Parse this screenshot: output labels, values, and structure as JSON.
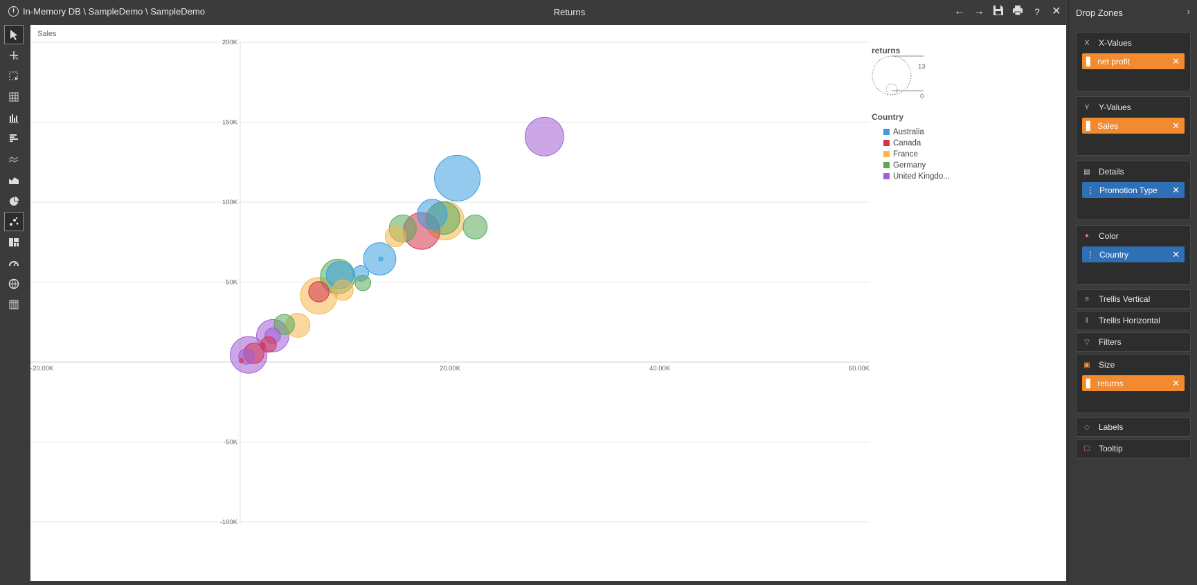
{
  "header": {
    "breadcrumb": "In-Memory DB \\ SampleDemo \\ SampleDemo",
    "title": "Returns"
  },
  "toolbar": {
    "tools": [
      "pointer",
      "crosshair",
      "select",
      "table",
      "column-chart",
      "bar-chart",
      "line-chart",
      "area-chart",
      "pie-chart",
      "scatter-chart",
      "treemap",
      "gauge",
      "map",
      "pivot"
    ],
    "active": "scatter-chart"
  },
  "canvas": {
    "sales_label": "Sales"
  },
  "chart_data": {
    "type": "scatter",
    "xlim": [
      -20000,
      60000
    ],
    "ylim": [
      -100000,
      200000
    ],
    "x_ticks": [
      "-20.00K",
      "20.00K",
      "40.00K",
      "60.00K"
    ],
    "x_tick_values": [
      -20000,
      20000,
      40000,
      60000
    ],
    "y_ticks": [
      "200K",
      "150K",
      "100K",
      "50K",
      "-50K",
      "-100K"
    ],
    "y_tick_values": [
      200000,
      150000,
      100000,
      50000,
      -50000,
      -100000
    ],
    "size_legend": {
      "title": "returns",
      "max": "13",
      "min": "0",
      "max_value": 13
    },
    "color_legend": {
      "title": "Country",
      "items": [
        {
          "name": "Australia",
          "color": "#3a9ee0"
        },
        {
          "name": "Canada",
          "color": "#d6334e"
        },
        {
          "name": "France",
          "color": "#f8b64c"
        },
        {
          "name": "Germany",
          "color": "#5aa95a"
        },
        {
          "name": "United Kingdo...",
          "color": "#a35fd6"
        }
      ]
    },
    "points": [
      {
        "series": "United Kingdo...",
        "x": 29000,
        "y": 141000,
        "size": 9
      },
      {
        "series": "Australia",
        "x": 20700,
        "y": 115000,
        "size": 13
      },
      {
        "series": "Australia",
        "x": 18300,
        "y": 92500,
        "size": 5
      },
      {
        "series": "France",
        "x": 19500,
        "y": 88500,
        "size": 9
      },
      {
        "series": "Germany",
        "x": 19400,
        "y": 90000,
        "size": 6
      },
      {
        "series": "Canada",
        "x": 17300,
        "y": 82000,
        "size": 8
      },
      {
        "series": "Germany",
        "x": 22400,
        "y": 84500,
        "size": 3
      },
      {
        "series": "Germany",
        "x": 15500,
        "y": 83500,
        "size": 4
      },
      {
        "series": "France",
        "x": 14800,
        "y": 78500,
        "size": 2
      },
      {
        "series": "Australia",
        "x": 13300,
        "y": 64500,
        "size": 6
      },
      {
        "series": "Australia",
        "x": 13400,
        "y": 64500,
        "size": 0
      },
      {
        "series": "Australia",
        "x": 11500,
        "y": 55500,
        "size": 1
      },
      {
        "series": "Germany",
        "x": 11700,
        "y": 49500,
        "size": 1
      },
      {
        "series": "Germany",
        "x": 9300,
        "y": 53500,
        "size": 7
      },
      {
        "series": "Australia",
        "x": 9500,
        "y": 54500,
        "size": 4
      },
      {
        "series": "France",
        "x": 9800,
        "y": 45000,
        "size": 2
      },
      {
        "series": "France",
        "x": 7500,
        "y": 41500,
        "size": 8
      },
      {
        "series": "Canada",
        "x": 7500,
        "y": 44000,
        "size": 2
      },
      {
        "series": "France",
        "x": 5500,
        "y": 23000,
        "size": 3
      },
      {
        "series": "Germany",
        "x": 4200,
        "y": 23500,
        "size": 2
      },
      {
        "series": "United Kingdo...",
        "x": 3100,
        "y": 16500,
        "size": 6
      },
      {
        "series": "United Kingdo...",
        "x": 3100,
        "y": 16500,
        "size": 1
      },
      {
        "series": "Canada",
        "x": 2700,
        "y": 11000,
        "size": 1
      },
      {
        "series": "Canada",
        "x": 2200,
        "y": 10500,
        "size": 0
      },
      {
        "series": "United Kingdo...",
        "x": 800,
        "y": 4500,
        "size": 8
      },
      {
        "series": "Canada",
        "x": 1300,
        "y": 5500,
        "size": 2
      },
      {
        "series": "United Kingdo...",
        "x": 600,
        "y": 3500,
        "size": 1
      },
      {
        "series": "Canada",
        "x": 100,
        "y": 1000,
        "size": 0
      }
    ]
  },
  "drop_zones": {
    "title": "Drop Zones",
    "x_values": {
      "label": "X-Values",
      "field": "net profit"
    },
    "y_values": {
      "label": "Y-Values",
      "field": "Sales"
    },
    "details": {
      "label": "Details",
      "field": "Promotion Type"
    },
    "color": {
      "label": "Color",
      "field": "Country"
    },
    "trellis_vertical": {
      "label": "Trellis Vertical"
    },
    "trellis_horizontal": {
      "label": "Trellis Horizontal"
    },
    "filters": {
      "label": "Filters"
    },
    "size": {
      "label": "Size",
      "field": "returns"
    },
    "labels": {
      "label": "Labels"
    },
    "tooltip": {
      "label": "Tooltip"
    }
  }
}
